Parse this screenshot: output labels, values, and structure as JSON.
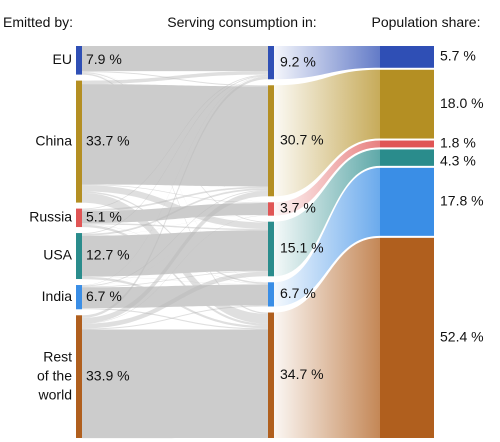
{
  "chart_data": {
    "type": "sankey",
    "headers": {
      "emitted": "Emitted by:",
      "consumption": "Serving consumption in:",
      "population": "Population share:"
    },
    "regions": [
      {
        "key": "eu",
        "name": "EU",
        "emitted": 7.9,
        "consumption": 9.2,
        "population": 5.7,
        "color": "#2f4fb5",
        "label_emitted": "7.9 %",
        "label_consumption": "9.2 %",
        "label_population": "5.7 %"
      },
      {
        "key": "china",
        "name": "China",
        "emitted": 33.7,
        "consumption": 30.7,
        "population": 18.0,
        "color": "#b48f23",
        "label_emitted": "33.7 %",
        "label_consumption": "30.7 %",
        "label_population": "18.0 %"
      },
      {
        "key": "russia",
        "name": "Russia",
        "emitted": 5.1,
        "consumption": 3.7,
        "population": 1.8,
        "color": "#e05555",
        "label_emitted": "5.1 %",
        "label_consumption": "3.7 %",
        "label_population": "1.8 %"
      },
      {
        "key": "usa",
        "name": "USA",
        "emitted": 12.7,
        "consumption": 15.1,
        "population": 4.3,
        "color": "#2a8c8c",
        "label_emitted": "12.7 %",
        "label_consumption": "15.1 %",
        "label_population": "4.3 %"
      },
      {
        "key": "india",
        "name": "India",
        "emitted": 6.7,
        "consumption": 6.7,
        "population": 17.8,
        "color": "#3a8ee6",
        "label_emitted": "6.7 %",
        "label_consumption": "6.7 %",
        "label_population": "17.8 %"
      },
      {
        "key": "row",
        "name": "Rest of the world",
        "name_lines": [
          "Rest",
          "of the",
          "world"
        ],
        "emitted": 33.9,
        "consumption": 34.7,
        "population": 52.4,
        "color": "#b05f1e",
        "label_emitted": "33.9 %",
        "label_consumption": "34.7 %",
        "label_population": "52.4 %"
      }
    ]
  }
}
